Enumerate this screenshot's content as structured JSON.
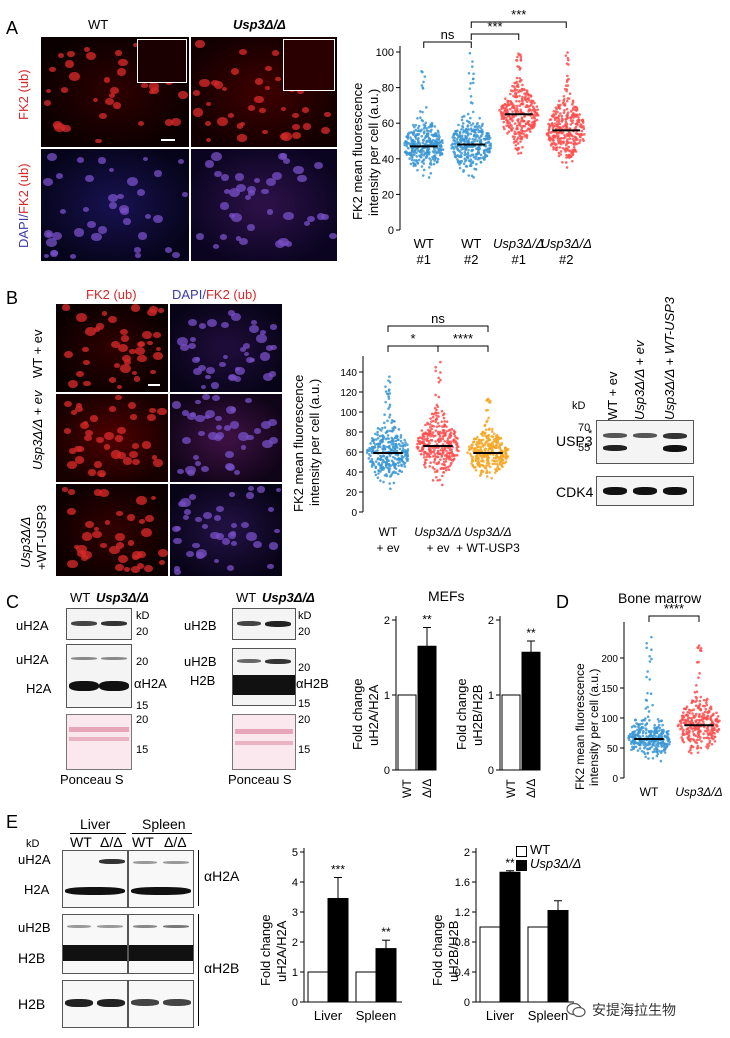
{
  "panelA": {
    "letter": "A",
    "col_wt": "WT",
    "col_mut": "Usp3Δ/Δ",
    "row1": "FK2 (ub)",
    "row2_dapi": "DAPI/",
    "row2_fk2": "FK2 (ub)",
    "ylabel1": "FK2 mean fluorescence",
    "ylabel2": "intensity per cell (a.u.)",
    "chart_data": {
      "type": "scatter",
      "ylim": [
        0,
        100
      ],
      "yticks": [
        "0",
        "20",
        "40",
        "60",
        "80",
        "100"
      ],
      "categories": [
        "WT #1",
        "WT #2",
        "Usp3Δ/Δ #1",
        "Usp3Δ/Δ #2"
      ],
      "xlabels_top": [
        "WT",
        "WT",
        "Usp3Δ/Δ",
        "Usp3Δ/Δ"
      ],
      "xlabels_bottom": [
        "#1",
        "#2",
        "#1",
        "#2"
      ],
      "means": [
        47,
        48,
        65,
        56
      ],
      "ranges": [
        [
          22,
          92
        ],
        [
          22,
          101
        ],
        [
          33,
          100
        ],
        [
          26,
          100
        ]
      ],
      "colors": [
        "#3b97d3",
        "#3b97d3",
        "#ff4d4d",
        "#ff4d4d"
      ],
      "sig": [
        {
          "text": "ns",
          "from": 0,
          "to": 1
        },
        {
          "text": "***",
          "from": 1,
          "to": 2
        },
        {
          "text": "***",
          "from": 1,
          "to": 3
        }
      ]
    }
  },
  "panelB": {
    "letter": "B",
    "col1": "FK2 (ub)",
    "col2_dapi": "DAPI/",
    "col2_fk2": "FK2 (ub)",
    "row1": "WT + ev",
    "row2": "Usp3Δ/Δ + ev",
    "row3a": "Usp3Δ/Δ",
    "row3b": "+WT-USP3",
    "ylabel1": "FK2 mean fluorescence",
    "ylabel2": "intensity per cell (a.u.)",
    "chart_data": {
      "type": "scatter",
      "ylim": [
        0,
        150
      ],
      "yticks": [
        "0",
        "20",
        "40",
        "60",
        "80",
        "100",
        "120",
        "140"
      ],
      "xlabels_top": [
        "WT",
        "Usp3Δ/Δ",
        "Usp3Δ/Δ"
      ],
      "xlabels_bottom": [
        "+ ev",
        "+ ev",
        "+ WT-USP3"
      ],
      "means": [
        59,
        66,
        59
      ],
      "ranges": [
        [
          5,
          140
        ],
        [
          10,
          150
        ],
        [
          20,
          125
        ]
      ],
      "colors": [
        "#3b97d3",
        "#ff4d4d",
        "#f5a623"
      ],
      "sig": [
        {
          "text": "*",
          "from": 0,
          "to": 1
        },
        {
          "text": "****",
          "from": 1,
          "to": 2
        },
        {
          "text": "ns",
          "from": 0,
          "to": 2
        }
      ]
    },
    "blot": {
      "lanes": [
        "WT + ev",
        "Usp3Δ/Δ + ev",
        "Usp3Δ/Δ + WT-USP3"
      ],
      "kd": "kD",
      "markers": [
        "70",
        "55"
      ],
      "star": "*",
      "usp3": "USP3",
      "cdk4": "CDK4"
    }
  },
  "panelC": {
    "letter": "C",
    "h2a": {
      "wt": "WT",
      "mut": "Usp3Δ/Δ",
      "kd": "kD",
      "m20a": "20",
      "m20b": "20",
      "m15": "15",
      "m20c": "20",
      "m15b": "15",
      "uh2a1": "uH2A",
      "uh2a2": "uH2A",
      "h2a": "H2A",
      "ab": "αH2A",
      "ponceau": "Ponceau S"
    },
    "h2b": {
      "wt": "WT",
      "mut": "Usp3Δ/Δ",
      "kd": "kD",
      "m20a": "20",
      "m20b": "20",
      "m15": "15",
      "m20c": "20",
      "m15b": "15",
      "uh2b1": "uH2B",
      "uh2b2": "uH2B",
      "h2b": "H2B",
      "ab": "αH2B",
      "ponceau": "Ponceau S"
    },
    "mefs": "MEFs",
    "chart_data": [
      {
        "type": "bar",
        "categories": [
          "WT",
          "Δ/Δ"
        ],
        "values": [
          1.0,
          1.65
        ],
        "errors": [
          0,
          0.25
        ],
        "ylim": [
          0,
          2
        ],
        "yticks": [
          "0",
          "1",
          "2"
        ],
        "ylabel1": "Fold change",
        "ylabel2": "uH2A/H2A",
        "sig": "**"
      },
      {
        "type": "bar",
        "categories": [
          "WT",
          "Δ/Δ"
        ],
        "values": [
          1.0,
          1.57
        ],
        "errors": [
          0,
          0.15
        ],
        "ylim": [
          0,
          2
        ],
        "yticks": [
          "0",
          "1",
          "2"
        ],
        "ylabel1": "Fold change",
        "ylabel2": "uH2B/H2B",
        "sig": "**"
      }
    ]
  },
  "panelD": {
    "letter": "D",
    "title": "Bone marrow",
    "ylabel1": "FK2 mean fluorescence",
    "ylabel2": "intensity per cell (a.u.)",
    "chart_data": {
      "type": "scatter",
      "ylim": [
        0,
        250
      ],
      "yticks": [
        "0",
        "50",
        "100",
        "150",
        "200"
      ],
      "categories": [
        "WT",
        "Usp3Δ/Δ"
      ],
      "means": [
        65,
        88
      ],
      "ranges": [
        [
          12,
          235
        ],
        [
          12,
          250
        ]
      ],
      "colors": [
        "#3b97d3",
        "#ff4d4d"
      ],
      "sig": [
        {
          "text": "****",
          "from": 0,
          "to": 1
        }
      ]
    }
  },
  "panelE": {
    "letter": "E",
    "liver": "Liver",
    "spleen": "Spleen",
    "wt": "WT",
    "dd": "Δ/Δ",
    "kd": "kD",
    "uh2a": "uH2A",
    "h2a": "H2A",
    "uh2b": "uH2B",
    "h2b1": "H2B",
    "h2b2": "H2B",
    "ab_h2a": "αH2A",
    "ab_h2b": "αH2B",
    "legend_wt": "WT",
    "legend_mut": "Usp3Δ/Δ",
    "chart_data": [
      {
        "type": "bar",
        "categories": [
          "Liver",
          "Spleen"
        ],
        "series": [
          {
            "name": "WT",
            "values": [
              1.0,
              1.0
            ]
          },
          {
            "name": "Usp3Δ/Δ",
            "values": [
              3.45,
              1.78
            ]
          }
        ],
        "errors": [
          0.7,
          0.28
        ],
        "ylim": [
          0,
          5
        ],
        "yticks": [
          "0",
          "1",
          "2",
          "3",
          "4",
          "5"
        ],
        "ylabel1": "Fold change",
        "ylabel2": "uH2A/H2A",
        "sig": [
          "***",
          "**"
        ]
      },
      {
        "type": "bar",
        "categories": [
          "Liver",
          "Spleen"
        ],
        "series": [
          {
            "name": "WT",
            "values": [
              1.0,
              1.0
            ]
          },
          {
            "name": "Usp3Δ/Δ",
            "values": [
              1.73,
              1.22
            ]
          }
        ],
        "errors": [
          0.02,
          0.13
        ],
        "ylim": [
          0,
          2
        ],
        "yticks": [
          "0",
          "0.4",
          "0.8",
          "1.2",
          "1.6",
          "2"
        ],
        "ylabel1": "Fold change",
        "ylabel2": "uH2B/H2B",
        "sig": [
          "**",
          ""
        ]
      }
    ]
  },
  "watermark": "安提海拉生物"
}
